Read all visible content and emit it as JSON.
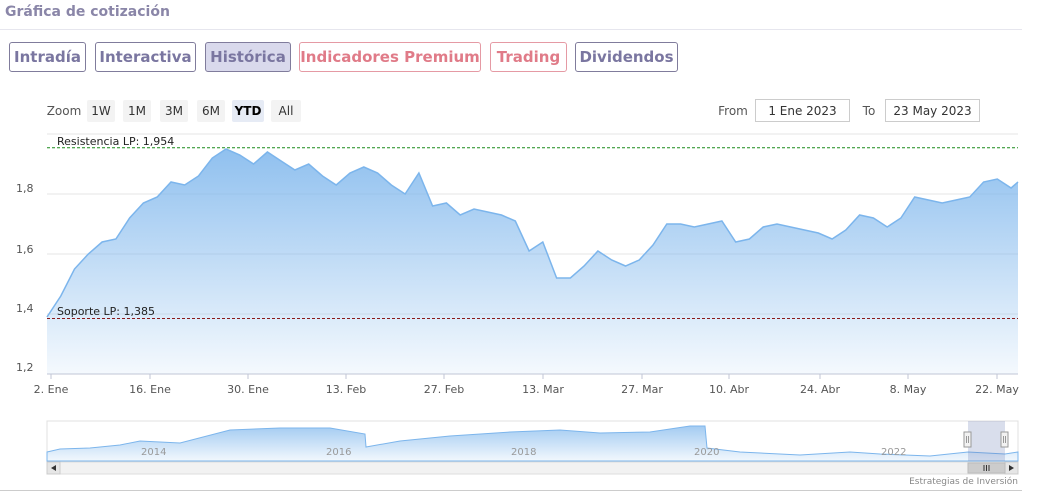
{
  "page": {
    "title": "Gráfica de cotización"
  },
  "tabs": [
    {
      "label": "Intradía",
      "active": false,
      "premium": false
    },
    {
      "label": "Interactiva",
      "active": false,
      "premium": false
    },
    {
      "label": "Histórica",
      "active": true,
      "premium": false
    },
    {
      "label": "Indicadores Premium",
      "active": false,
      "premium": true
    },
    {
      "label": "Trading",
      "active": false,
      "premium": true
    },
    {
      "label": "Dividendos",
      "active": false,
      "premium": false
    }
  ],
  "range_selector": {
    "zoom_label": "Zoom",
    "buttons": [
      {
        "label": "1W",
        "selected": false
      },
      {
        "label": "1M",
        "selected": false
      },
      {
        "label": "3M",
        "selected": false
      },
      {
        "label": "6M",
        "selected": false
      },
      {
        "label": "YTD",
        "selected": true
      },
      {
        "label": "All",
        "selected": false
      }
    ],
    "from_label": "From",
    "from_value": "1 Ene 2023",
    "to_label": "To",
    "to_value": "23 May 2023"
  },
  "colors": {
    "line": "#7cb5ec",
    "resistance": "#1a8a1a",
    "support": "#8b1a1a",
    "tab_border": "#807c9c",
    "premium": "#e07b88"
  },
  "chart_data": {
    "type": "area",
    "y_ticks": [
      "1,2",
      "1,4",
      "1,6",
      "1,8"
    ],
    "x_ticks": [
      "2. Ene",
      "16. Ene",
      "30. Ene",
      "13. Feb",
      "27. Feb",
      "13. Mar",
      "27. Mar",
      "10. Abr",
      "24. Abr",
      "8. May",
      "22. May"
    ],
    "ylim": [
      1.2,
      2.0
    ],
    "xlim": [
      "2023-01-02",
      "2023-05-23"
    ],
    "annotations": [
      {
        "label": "Resistencia LP: 1,954",
        "value": 1.954
      },
      {
        "label": "Soporte LP: 1,385",
        "value": 1.385
      }
    ],
    "series": [
      {
        "x": [
          "2023-01-02",
          "2023-01-04",
          "2023-01-06",
          "2023-01-08",
          "2023-01-10",
          "2023-01-12",
          "2023-01-14",
          "2023-01-16",
          "2023-01-18",
          "2023-01-20",
          "2023-01-22",
          "2023-01-24",
          "2023-01-26",
          "2023-01-28",
          "2023-01-30",
          "2023-02-01",
          "2023-02-03",
          "2023-02-05",
          "2023-02-07",
          "2023-02-09",
          "2023-02-11",
          "2023-02-13",
          "2023-02-15",
          "2023-02-17",
          "2023-02-19",
          "2023-02-21",
          "2023-02-23",
          "2023-02-25",
          "2023-02-27",
          "2023-03-01",
          "2023-03-03",
          "2023-03-05",
          "2023-03-07",
          "2023-03-09",
          "2023-03-11",
          "2023-03-13",
          "2023-03-15",
          "2023-03-17",
          "2023-03-19",
          "2023-03-21",
          "2023-03-23",
          "2023-03-25",
          "2023-03-27",
          "2023-03-29",
          "2023-03-31",
          "2023-04-02",
          "2023-04-04",
          "2023-04-06",
          "2023-04-08",
          "2023-04-10",
          "2023-04-12",
          "2023-04-14",
          "2023-04-16",
          "2023-04-18",
          "2023-04-20",
          "2023-04-22",
          "2023-04-24",
          "2023-04-26",
          "2023-04-28",
          "2023-04-30",
          "2023-05-02",
          "2023-05-04",
          "2023-05-06",
          "2023-05-08",
          "2023-05-10",
          "2023-05-12",
          "2023-05-14",
          "2023-05-16",
          "2023-05-18",
          "2023-05-20",
          "2023-05-22",
          "2023-05-23"
        ],
        "values": [
          1.39,
          1.46,
          1.55,
          1.6,
          1.64,
          1.65,
          1.72,
          1.77,
          1.79,
          1.84,
          1.83,
          1.86,
          1.92,
          1.95,
          1.93,
          1.9,
          1.94,
          1.91,
          1.88,
          1.9,
          1.86,
          1.83,
          1.87,
          1.89,
          1.87,
          1.83,
          1.8,
          1.87,
          1.76,
          1.77,
          1.73,
          1.75,
          1.74,
          1.73,
          1.71,
          1.61,
          1.64,
          1.52,
          1.52,
          1.56,
          1.61,
          1.58,
          1.56,
          1.58,
          1.63,
          1.7,
          1.7,
          1.69,
          1.7,
          1.71,
          1.64,
          1.65,
          1.69,
          1.7,
          1.69,
          1.68,
          1.67,
          1.65,
          1.68,
          1.73,
          1.72,
          1.69,
          1.72,
          1.79,
          1.78,
          1.77,
          1.78,
          1.79,
          1.84,
          1.85,
          1.82,
          1.84
        ]
      }
    ]
  },
  "navigator": {
    "year_labels": [
      "2014",
      "2016",
      "2018",
      "2020",
      "2022"
    ]
  },
  "footer": {
    "credit": "Estrategias de Inversión"
  }
}
